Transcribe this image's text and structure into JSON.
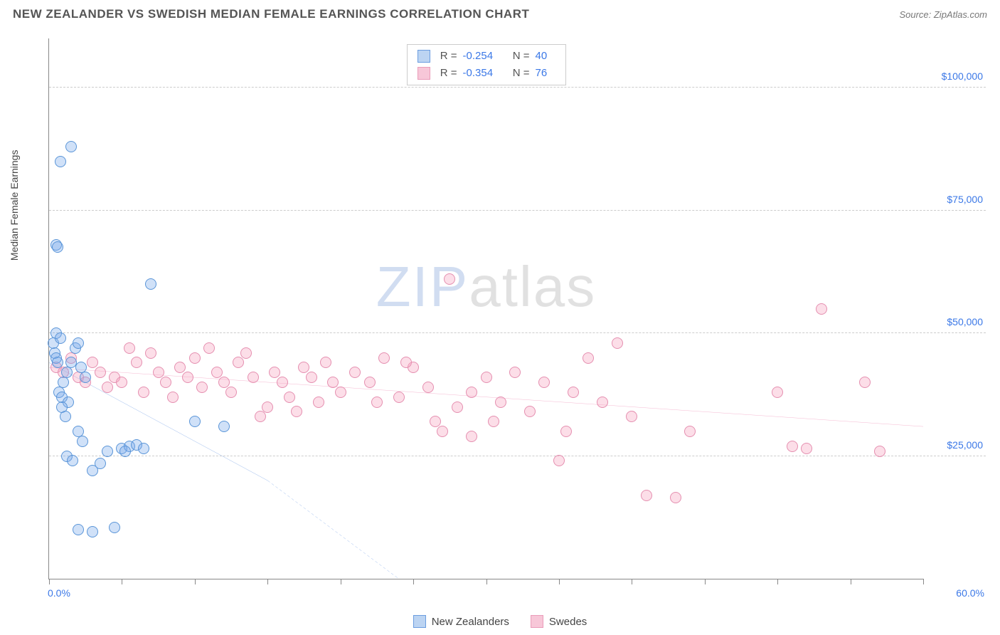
{
  "title": "NEW ZEALANDER VS SWEDISH MEDIAN FEMALE EARNINGS CORRELATION CHART",
  "source": "Source: ZipAtlas.com",
  "y_axis_label": "Median Female Earnings",
  "watermark": {
    "z": "ZIP",
    "rest": "atlas"
  },
  "chart": {
    "type": "scatter",
    "xlim": [
      0,
      60
    ],
    "ylim": [
      0,
      110000
    ],
    "x_ticks": [
      0,
      5,
      10,
      15,
      20,
      25,
      30,
      35,
      40,
      45,
      50,
      55,
      60
    ],
    "x_tick_labels": {
      "0": "0.0%",
      "60": "60.0%"
    },
    "y_gridlines": [
      25000,
      50000,
      75000,
      100000
    ],
    "y_tick_labels": [
      "$25,000",
      "$50,000",
      "$75,000",
      "$100,000"
    ],
    "background_color": "#ffffff",
    "grid_color": "#cccccc",
    "axis_color": "#888888",
    "tick_label_color": "#3b78e7",
    "marker_radius": 8,
    "marker_stroke_width": 1.2
  },
  "series": [
    {
      "name": "New Zealanders",
      "color_fill": "rgba(120,170,235,0.35)",
      "color_stroke": "#5a95d8",
      "swatch_fill": "#bcd4f2",
      "swatch_stroke": "#6b9de0",
      "R": "-0.254",
      "N": "40",
      "trend": {
        "x1": 0,
        "y1": 44000,
        "x2": 15,
        "y2": 20000,
        "dash_to_x": 24,
        "dash_to_y": 0,
        "color": "#2e6fd6",
        "width": 2
      },
      "points": [
        [
          0.3,
          48000
        ],
        [
          0.4,
          46000
        ],
        [
          0.5,
          50000
        ],
        [
          0.5,
          45000
        ],
        [
          0.6,
          44000
        ],
        [
          0.8,
          49000
        ],
        [
          0.7,
          38000
        ],
        [
          0.9,
          37000
        ],
        [
          1.0,
          40000
        ],
        [
          1.2,
          42000
        ],
        [
          1.3,
          36000
        ],
        [
          1.5,
          44000
        ],
        [
          0.5,
          68000
        ],
        [
          0.6,
          67500
        ],
        [
          0.8,
          85000
        ],
        [
          1.5,
          88000
        ],
        [
          1.8,
          47000
        ],
        [
          2.0,
          48000
        ],
        [
          2.2,
          43000
        ],
        [
          2.5,
          41000
        ],
        [
          2.0,
          30000
        ],
        [
          2.3,
          28000
        ],
        [
          1.2,
          25000
        ],
        [
          1.6,
          24000
        ],
        [
          3.0,
          22000
        ],
        [
          3.5,
          23500
        ],
        [
          4.0,
          26000
        ],
        [
          5.0,
          26500
        ],
        [
          5.5,
          27000
        ],
        [
          6.0,
          27200
        ],
        [
          7.0,
          60000
        ],
        [
          2.0,
          10000
        ],
        [
          3.0,
          9500
        ],
        [
          4.5,
          10500
        ],
        [
          5.2,
          26000
        ],
        [
          6.5,
          26500
        ],
        [
          10.0,
          32000
        ],
        [
          12.0,
          31000
        ],
        [
          0.9,
          35000
        ],
        [
          1.1,
          33000
        ]
      ]
    },
    {
      "name": "Swedes",
      "color_fill": "rgba(245,160,190,0.35)",
      "color_stroke": "#e58fb0",
      "swatch_fill": "#f7c7d8",
      "swatch_stroke": "#ea9cb9",
      "R": "-0.354",
      "N": "76",
      "trend": {
        "x1": 0,
        "y1": 43000,
        "x2": 60,
        "y2": 31000,
        "color": "#e86a9e",
        "width": 2
      },
      "points": [
        [
          0.5,
          43000
        ],
        [
          1.0,
          42000
        ],
        [
          1.5,
          45000
        ],
        [
          2.0,
          41000
        ],
        [
          2.5,
          40000
        ],
        [
          3.0,
          44000
        ],
        [
          3.5,
          42000
        ],
        [
          4.0,
          39000
        ],
        [
          4.5,
          41000
        ],
        [
          5.0,
          40000
        ],
        [
          5.5,
          47000
        ],
        [
          6.0,
          44000
        ],
        [
          6.5,
          38000
        ],
        [
          7.0,
          46000
        ],
        [
          7.5,
          42000
        ],
        [
          8.0,
          40000
        ],
        [
          8.5,
          37000
        ],
        [
          9.0,
          43000
        ],
        [
          9.5,
          41000
        ],
        [
          10.0,
          45000
        ],
        [
          10.5,
          39000
        ],
        [
          11.0,
          47000
        ],
        [
          11.5,
          42000
        ],
        [
          12.0,
          40000
        ],
        [
          12.5,
          38000
        ],
        [
          13.0,
          44000
        ],
        [
          13.5,
          46000
        ],
        [
          14.0,
          41000
        ],
        [
          14.5,
          33000
        ],
        [
          15.0,
          35000
        ],
        [
          15.5,
          42000
        ],
        [
          16.0,
          40000
        ],
        [
          16.5,
          37000
        ],
        [
          17.0,
          34000
        ],
        [
          17.5,
          43000
        ],
        [
          18.0,
          41000
        ],
        [
          18.5,
          36000
        ],
        [
          19.0,
          44000
        ],
        [
          20.0,
          38000
        ],
        [
          21.0,
          42000
        ],
        [
          22.0,
          40000
        ],
        [
          22.5,
          36000
        ],
        [
          23.0,
          45000
        ],
        [
          24.0,
          37000
        ],
        [
          25.0,
          43000
        ],
        [
          26.0,
          39000
        ],
        [
          27.0,
          30000
        ],
        [
          27.5,
          61000
        ],
        [
          28.0,
          35000
        ],
        [
          29.0,
          38000
        ],
        [
          30.0,
          41000
        ],
        [
          31.0,
          36000
        ],
        [
          32.0,
          42000
        ],
        [
          33.0,
          34000
        ],
        [
          34.0,
          40000
        ],
        [
          35.0,
          24000
        ],
        [
          36.0,
          38000
        ],
        [
          37.0,
          45000
        ],
        [
          38.0,
          36000
        ],
        [
          39.0,
          48000
        ],
        [
          40.0,
          33000
        ],
        [
          41.0,
          17000
        ],
        [
          43.0,
          16500
        ],
        [
          44.0,
          30000
        ],
        [
          29.0,
          29000
        ],
        [
          26.5,
          32000
        ],
        [
          50.0,
          38000
        ],
        [
          51.0,
          27000
        ],
        [
          52.0,
          26500
        ],
        [
          53.0,
          55000
        ],
        [
          56.0,
          40000
        ],
        [
          57.0,
          26000
        ],
        [
          24.5,
          44000
        ],
        [
          19.5,
          40000
        ],
        [
          30.5,
          32000
        ],
        [
          35.5,
          30000
        ]
      ]
    }
  ],
  "stats_box": {
    "r_label": "R =",
    "n_label": "N ="
  },
  "legend": {
    "label1": "New Zealanders",
    "label2": "Swedes"
  }
}
